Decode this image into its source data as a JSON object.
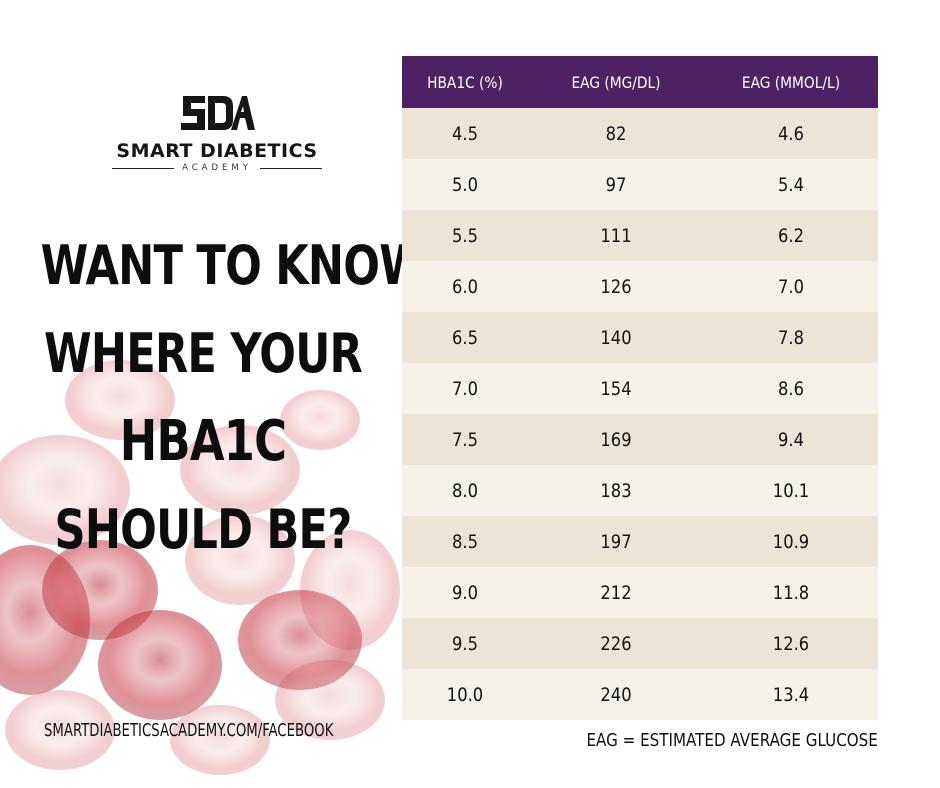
{
  "logo": {
    "mark": "SDA",
    "name": "SMART DIABETICS",
    "subtitle": "ACADEMY"
  },
  "headline": {
    "line1": "WANT TO KNOW",
    "line2": "WHERE YOUR",
    "line3": "HBA1C",
    "line4": "SHOULD BE?"
  },
  "footer": {
    "url": "SMARTDIABETICSACADEMY.COM/FACEBOOK",
    "note": "EAG = ESTIMATED AVERAGE GLUCOSE"
  },
  "colors": {
    "header_bg": "#4d2163",
    "row_odd": "#ece5d6",
    "row_even": "#f5f2ea",
    "blood_cell": "#c8323a"
  },
  "chart_data": {
    "type": "table",
    "columns": [
      "HBA1C (%)",
      "EAG (MG/DL)",
      "EAG (MMOL/L)"
    ],
    "rows": [
      [
        "4.5",
        "82",
        "4.6"
      ],
      [
        "5.0",
        "97",
        "5.4"
      ],
      [
        "5.5",
        "111",
        "6.2"
      ],
      [
        "6.0",
        "126",
        "7.0"
      ],
      [
        "6.5",
        "140",
        "7.8"
      ],
      [
        "7.0",
        "154",
        "8.6"
      ],
      [
        "7.5",
        "169",
        "9.4"
      ],
      [
        "8.0",
        "183",
        "10.1"
      ],
      [
        "8.5",
        "197",
        "10.9"
      ],
      [
        "9.0",
        "212",
        "11.8"
      ],
      [
        "9.5",
        "226",
        "12.6"
      ],
      [
        "10.0",
        "240",
        "13.4"
      ]
    ]
  }
}
